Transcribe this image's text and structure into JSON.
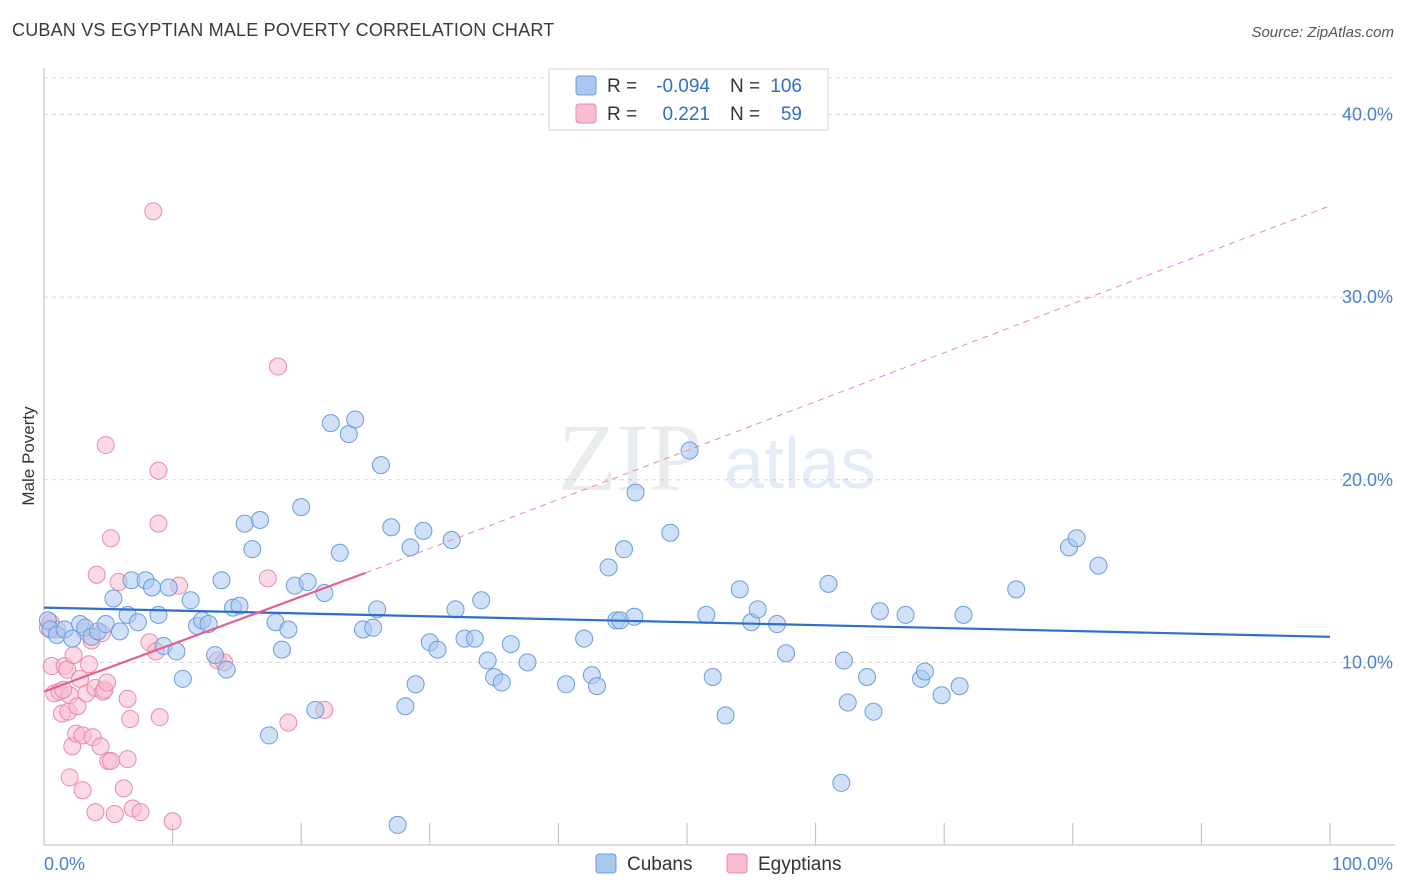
{
  "title": "CUBAN VS EGYPTIAN MALE POVERTY CORRELATION CHART",
  "source": "Source: ZipAtlas.com",
  "watermark": {
    "zip": "ZIP",
    "atlas": "atlas"
  },
  "colors": {
    "cubans_fill": "#a9c8f0",
    "cubans_stroke": "#6a9ce0",
    "cubans_line": "#2c6fcc",
    "egyptians_fill": "#f7bcd0",
    "egyptians_stroke": "#e98aaa",
    "egyptians_line": "#e4608e",
    "tick_text": "#4a7fd0",
    "grid": "#d8d8d8"
  },
  "legend_top": {
    "rows": [
      {
        "r_label": "R =",
        "r_value": "-0.094",
        "n_label": "N =",
        "n_value": "106"
      },
      {
        "r_label": "R =",
        "r_value": "0.221",
        "n_label": "N =",
        "n_value": "59"
      }
    ]
  },
  "legend_bottom": {
    "cubans": "Cubans",
    "egyptians": "Egyptians"
  },
  "chart_data": {
    "type": "scatter",
    "title": "CUBAN VS EGYPTIAN MALE POVERTY CORRELATION CHART",
    "xlabel": "",
    "ylabel": "Male Poverty",
    "xlim": [
      0,
      100
    ],
    "ylim": [
      0,
      42
    ],
    "x_tick_labels": [
      "0.0%",
      "100.0%"
    ],
    "y_ticks": [
      10,
      20,
      30,
      40
    ],
    "y_tick_labels": [
      "10.0%",
      "20.0%",
      "30.0%",
      "40.0%"
    ],
    "grid": true,
    "legend_position": "top-center",
    "series": [
      {
        "name": "Cubans",
        "r": -0.094,
        "n": 106,
        "trend": {
          "x": [
            0,
            100
          ],
          "y": [
            13.0,
            11.4
          ]
        },
        "points": [
          [
            0.3,
            12.3
          ],
          [
            0.5,
            11.8
          ],
          [
            1.0,
            11.5
          ],
          [
            1.6,
            11.8
          ],
          [
            2.2,
            11.3
          ],
          [
            2.8,
            12.1
          ],
          [
            3.2,
            11.9
          ],
          [
            3.7,
            11.4
          ],
          [
            4.2,
            11.7
          ],
          [
            4.8,
            12.1
          ],
          [
            5.4,
            13.5
          ],
          [
            5.9,
            11.7
          ],
          [
            6.5,
            12.6
          ],
          [
            6.8,
            14.5
          ],
          [
            7.3,
            12.2
          ],
          [
            7.9,
            14.5
          ],
          [
            8.4,
            14.1
          ],
          [
            8.9,
            12.6
          ],
          [
            9.3,
            10.9
          ],
          [
            9.7,
            14.1
          ],
          [
            10.3,
            10.6
          ],
          [
            10.8,
            9.1
          ],
          [
            11.4,
            13.4
          ],
          [
            11.9,
            12.0
          ],
          [
            12.3,
            12.3
          ],
          [
            12.8,
            12.1
          ],
          [
            13.3,
            10.4
          ],
          [
            13.8,
            14.5
          ],
          [
            14.2,
            9.6
          ],
          [
            14.7,
            13.0
          ],
          [
            15.2,
            13.1
          ],
          [
            15.6,
            17.6
          ],
          [
            16.2,
            16.2
          ],
          [
            16.8,
            17.8
          ],
          [
            17.5,
            6.0
          ],
          [
            18.0,
            12.2
          ],
          [
            18.5,
            10.7
          ],
          [
            19.0,
            11.8
          ],
          [
            19.5,
            14.2
          ],
          [
            20.0,
            18.5
          ],
          [
            20.5,
            14.4
          ],
          [
            21.1,
            7.4
          ],
          [
            21.8,
            13.8
          ],
          [
            22.3,
            23.1
          ],
          [
            23.0,
            16.0
          ],
          [
            23.7,
            22.5
          ],
          [
            24.2,
            23.3
          ],
          [
            24.8,
            11.8
          ],
          [
            25.6,
            11.9
          ],
          [
            25.9,
            12.9
          ],
          [
            26.2,
            20.8
          ],
          [
            27.0,
            17.4
          ],
          [
            27.5,
            1.1
          ],
          [
            28.1,
            7.6
          ],
          [
            28.5,
            16.3
          ],
          [
            28.9,
            8.8
          ],
          [
            29.5,
            17.2
          ],
          [
            30.0,
            11.1
          ],
          [
            30.6,
            10.7
          ],
          [
            31.7,
            16.7
          ],
          [
            32.0,
            12.9
          ],
          [
            32.7,
            11.3
          ],
          [
            33.5,
            11.3
          ],
          [
            34.0,
            13.4
          ],
          [
            34.5,
            10.1
          ],
          [
            35.0,
            9.2
          ],
          [
            35.6,
            8.9
          ],
          [
            36.3,
            11.0
          ],
          [
            37.6,
            10.0
          ],
          [
            40.6,
            8.8
          ],
          [
            42.0,
            11.3
          ],
          [
            42.6,
            9.3
          ],
          [
            43.0,
            8.7
          ],
          [
            43.9,
            15.2
          ],
          [
            44.5,
            12.3
          ],
          [
            44.8,
            12.3
          ],
          [
            45.1,
            16.2
          ],
          [
            45.9,
            12.5
          ],
          [
            46.0,
            19.3
          ],
          [
            48.7,
            17.1
          ],
          [
            50.2,
            21.6
          ],
          [
            51.5,
            12.6
          ],
          [
            52.0,
            9.2
          ],
          [
            53.0,
            7.1
          ],
          [
            54.1,
            14.0
          ],
          [
            55.0,
            12.2
          ],
          [
            55.5,
            12.9
          ],
          [
            57.0,
            12.1
          ],
          [
            57.7,
            10.5
          ],
          [
            61.0,
            14.3
          ],
          [
            62.2,
            10.1
          ],
          [
            62.5,
            7.8
          ],
          [
            64.0,
            9.2
          ],
          [
            64.5,
            7.3
          ],
          [
            65.0,
            12.8
          ],
          [
            67.0,
            12.6
          ],
          [
            68.2,
            9.1
          ],
          [
            68.5,
            9.5
          ],
          [
            69.8,
            8.2
          ],
          [
            71.2,
            8.7
          ],
          [
            71.5,
            12.6
          ],
          [
            75.6,
            14.0
          ],
          [
            79.7,
            16.3
          ],
          [
            80.3,
            16.8
          ],
          [
            82.0,
            15.3
          ],
          [
            62.0,
            3.4
          ]
        ]
      },
      {
        "name": "Egyptians",
        "r": 0.221,
        "n": 59,
        "trend": {
          "x": [
            0,
            25
          ],
          "y": [
            8.4,
            14.9
          ]
        },
        "trend_extension": {
          "x": [
            25,
            100
          ],
          "y": [
            14.9,
            35.0
          ]
        },
        "points": [
          [
            0.3,
            11.9
          ],
          [
            0.5,
            12.2
          ],
          [
            0.6,
            9.8
          ],
          [
            0.8,
            8.3
          ],
          [
            1.0,
            11.8
          ],
          [
            1.2,
            8.4
          ],
          [
            1.4,
            7.2
          ],
          [
            1.6,
            9.8
          ],
          [
            1.8,
            9.6
          ],
          [
            1.9,
            7.3
          ],
          [
            2.0,
            8.2
          ],
          [
            2.2,
            5.4
          ],
          [
            2.3,
            10.4
          ],
          [
            2.5,
            6.1
          ],
          [
            2.6,
            7.6
          ],
          [
            2.8,
            9.1
          ],
          [
            3.0,
            6.0
          ],
          [
            3.2,
            11.7
          ],
          [
            3.0,
            3.0
          ],
          [
            3.3,
            8.3
          ],
          [
            3.5,
            9.9
          ],
          [
            3.7,
            11.2
          ],
          [
            3.8,
            5.9
          ],
          [
            4.0,
            1.8
          ],
          [
            4.0,
            8.6
          ],
          [
            4.1,
            14.8
          ],
          [
            4.4,
            5.4
          ],
          [
            4.5,
            11.6
          ],
          [
            4.6,
            8.4
          ],
          [
            4.7,
            8.5
          ],
          [
            4.8,
            21.9
          ],
          [
            5.0,
            4.6
          ],
          [
            4.9,
            8.9
          ],
          [
            5.2,
            16.8
          ],
          [
            5.2,
            4.6
          ],
          [
            5.5,
            1.7
          ],
          [
            5.8,
            14.4
          ],
          [
            6.2,
            3.1
          ],
          [
            6.5,
            4.7
          ],
          [
            6.5,
            8.0
          ],
          [
            6.7,
            6.9
          ],
          [
            6.9,
            2.0
          ],
          [
            7.5,
            1.8
          ],
          [
            8.2,
            11.1
          ],
          [
            8.5,
            34.7
          ],
          [
            8.7,
            10.6
          ],
          [
            8.9,
            17.6
          ],
          [
            8.9,
            20.5
          ],
          [
            9.0,
            7.0
          ],
          [
            10.0,
            1.3
          ],
          [
            10.5,
            14.2
          ],
          [
            13.5,
            10.1
          ],
          [
            14.0,
            10.0
          ],
          [
            17.4,
            14.6
          ],
          [
            18.2,
            26.2
          ],
          [
            19.0,
            6.7
          ],
          [
            21.8,
            7.4
          ],
          [
            2.0,
            3.7
          ],
          [
            1.5,
            8.5
          ]
        ]
      }
    ]
  }
}
